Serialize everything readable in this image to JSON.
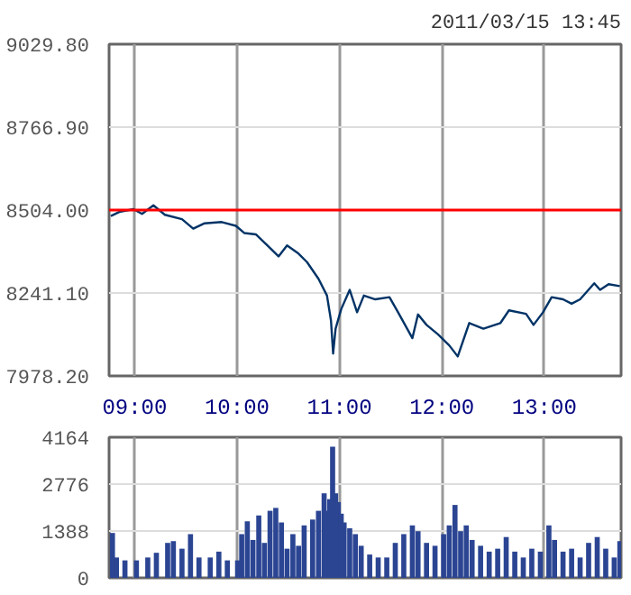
{
  "chart_data": [
    {
      "type": "line",
      "title": "2011/03/15 13:45",
      "x": [
        8.767,
        8.85,
        8.988,
        9.072,
        9.183,
        9.295,
        9.462,
        9.572,
        9.683,
        9.85,
        9.988,
        10.072,
        10.183,
        10.295,
        10.405,
        10.488,
        10.6,
        10.683,
        10.795,
        10.878,
        10.917,
        10.938,
        10.962,
        11.017,
        11.1,
        11.172,
        11.238,
        11.35,
        11.488,
        11.572,
        11.712,
        11.767,
        11.85,
        11.962,
        12.072,
        12.155,
        12.267,
        12.405,
        12.572,
        12.655,
        12.822,
        12.895,
        12.988,
        13.072,
        13.183,
        13.267,
        13.35,
        13.488,
        13.545,
        13.628,
        13.738
      ],
      "series": [
        {
          "color": "#003366",
          "values": [
            8485,
            8498,
            8507,
            8492,
            8519,
            8489,
            8475,
            8445,
            8462,
            8466,
            8454,
            8431,
            8427,
            8392,
            8357,
            8392,
            8366,
            8339,
            8286,
            8233,
            8154,
            8049,
            8128,
            8190,
            8251,
            8180,
            8233,
            8221,
            8228,
            8180,
            8098,
            8173,
            8140,
            8110,
            8075,
            8040,
            8146,
            8128,
            8146,
            8186,
            8175,
            8140,
            8180,
            8228,
            8221,
            8207,
            8221,
            8272,
            8251,
            8269,
            8263
          ]
        }
      ],
      "xlim": [
        8.75,
        13.75
      ],
      "xticks": [
        {
          "value": 9,
          "label": "09:00"
        },
        {
          "value": 10,
          "label": "10:00"
        },
        {
          "value": 11,
          "label": "11:00"
        },
        {
          "value": 12,
          "label": "12:00"
        },
        {
          "value": 13,
          "label": "13:00"
        }
      ],
      "ylim": [
        7978.2,
        9029.8
      ],
      "yticks": [
        {
          "value": 7978.2,
          "label": "7978.20"
        },
        {
          "value": 8241.1,
          "label": "8241.10"
        },
        {
          "value": 8504,
          "label": "8504.00"
        },
        {
          "value": 8766.9,
          "label": "8766.90"
        },
        {
          "value": 9029.8,
          "label": "9029.80"
        }
      ],
      "ref_lines": [
        {
          "axis": "y",
          "value": 8504,
          "color": "#ff0000"
        }
      ],
      "grid": true
    },
    {
      "type": "bar",
      "x": [
        8.783,
        8.822,
        8.905,
        9.017,
        9.128,
        9.212,
        9.322,
        9.378,
        9.462,
        9.545,
        9.628,
        9.738,
        9.822,
        9.905,
        10.005,
        10.045,
        10.1,
        10.155,
        10.212,
        10.267,
        10.322,
        10.378,
        10.433,
        10.488,
        10.545,
        10.6,
        10.655,
        10.738,
        10.795,
        10.85,
        10.878,
        10.905,
        10.933,
        10.962,
        10.988,
        11.017,
        11.045,
        11.1,
        11.155,
        11.212,
        11.295,
        11.378,
        11.462,
        11.545,
        11.628,
        11.712,
        11.767,
        11.85,
        11.933,
        12.017,
        12.072,
        12.128,
        12.183,
        12.238,
        12.295,
        12.378,
        12.462,
        12.545,
        12.628,
        12.712,
        12.795,
        12.878,
        12.962,
        13.045,
        13.1,
        13.183,
        13.267,
        13.35,
        13.433,
        13.517,
        13.6,
        13.683,
        13.738
      ],
      "series": [
        {
          "color": "#2b4593",
          "values": [
            1330,
            604,
            518,
            518,
            604,
            743,
            1036,
            1088,
            864,
            1295,
            604,
            604,
            777,
            518,
            518,
            1295,
            1675,
            1123,
            1848,
            1036,
            1986,
            2072,
            1641,
            864,
            1295,
            950,
            1554,
            1727,
            1986,
            2504,
            1986,
            2331,
            3886,
            2504,
            2245,
            1900,
            1641,
            1468,
            1295,
            950,
            691,
            604,
            604,
            1036,
            1295,
            1554,
            1382,
            1036,
            950,
            1295,
            1554,
            2159,
            1382,
            1554,
            1123,
            950,
            777,
            864,
            1209,
            777,
            604,
            864,
            777,
            1554,
            1123,
            777,
            864,
            604,
            1036,
            1209,
            864,
            604,
            1088
          ]
        }
      ],
      "xlim": [
        8.75,
        13.75
      ],
      "xticks": [
        {
          "value": 9,
          "label": null
        },
        {
          "value": 10,
          "label": null
        },
        {
          "value": 11,
          "label": null
        },
        {
          "value": 12,
          "label": null
        },
        {
          "value": 13,
          "label": null
        }
      ],
      "ylim": [
        0,
        4164
      ],
      "yticks": [
        0,
        1388,
        2776,
        4164
      ],
      "tick_labels": "y",
      "grid": true
    }
  ]
}
